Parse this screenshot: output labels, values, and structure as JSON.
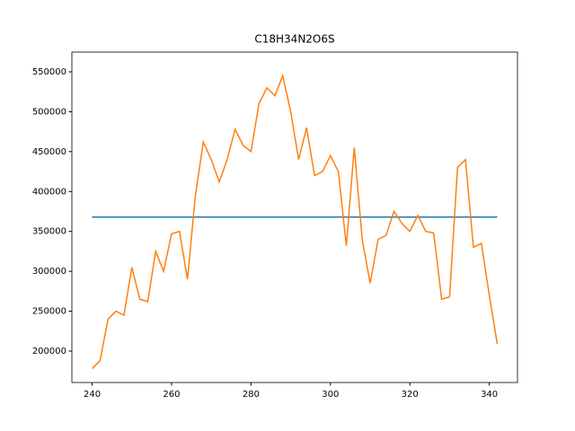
{
  "chart_data": {
    "type": "line",
    "title": "C18H34N2O6S",
    "x": [
      240,
      242,
      244,
      246,
      248,
      250,
      252,
      254,
      256,
      258,
      260,
      262,
      264,
      266,
      268,
      270,
      272,
      274,
      276,
      278,
      280,
      282,
      284,
      286,
      288,
      290,
      292,
      294,
      296,
      298,
      300,
      302,
      304,
      306,
      308,
      310,
      312,
      314,
      316,
      318,
      320,
      322,
      324,
      326,
      328,
      330,
      332,
      334,
      336,
      338,
      340,
      342
    ],
    "series": [
      {
        "color": "#1f77b4",
        "x": [
          240,
          342
        ],
        "values": [
          368000,
          368000
        ]
      },
      {
        "color": "#ff7f0e",
        "values": [
          178000,
          188000,
          240000,
          250000,
          245000,
          305000,
          265000,
          262000,
          325000,
          300000,
          347000,
          350000,
          290000,
          395000,
          462000,
          440000,
          412000,
          440000,
          478000,
          458000,
          450000,
          510000,
          530000,
          520000,
          545000,
          500000,
          440000,
          480000,
          420000,
          425000,
          445000,
          425000,
          332000,
          455000,
          340000,
          285000,
          340000,
          345000,
          375000,
          360000,
          350000,
          370000,
          350000,
          348000,
          265000,
          268000,
          430000,
          440000,
          330000,
          335000,
          270000,
          209000
        ]
      }
    ],
    "xlim": [
      234.9,
      347.1
    ],
    "xticks": [
      240,
      260,
      280,
      300,
      320,
      340
    ],
    "ylim": [
      160600,
      574750
    ],
    "yticks": [
      200000,
      250000,
      300000,
      350000,
      400000,
      450000,
      500000,
      550000
    ],
    "grid": false
  }
}
